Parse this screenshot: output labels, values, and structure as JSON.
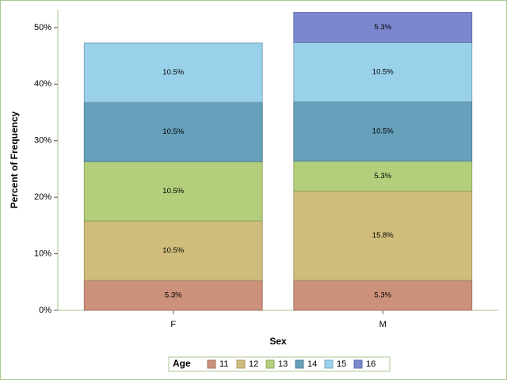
{
  "chart_data": {
    "type": "stacked_bar",
    "x_label": "Sex",
    "y_label": "Percent of Frequency",
    "legend_title": "Age",
    "categories": [
      "F",
      "M"
    ],
    "series": [
      {
        "name": "11",
        "color": "#cc917a",
        "values": [
          5.3,
          5.3
        ],
        "value_labels": [
          "5.3%",
          "5.3%"
        ]
      },
      {
        "name": "12",
        "color": "#d0bd7c",
        "values": [
          10.5,
          15.8
        ],
        "value_labels": [
          "10.5%",
          "15.8%"
        ]
      },
      {
        "name": "13",
        "color": "#b4cf7c",
        "values": [
          10.5,
          5.3
        ],
        "value_labels": [
          "10.5%",
          "5.3%"
        ]
      },
      {
        "name": "14",
        "color": "#66a0bb",
        "values": [
          10.5,
          10.5
        ],
        "value_labels": [
          "10.5%",
          "10.5%"
        ]
      },
      {
        "name": "15",
        "color": "#99d1ea",
        "values": [
          10.5,
          10.5
        ],
        "value_labels": [
          "10.5%",
          "10.5%"
        ]
      },
      {
        "name": "16",
        "color": "#7b88d0",
        "values": [
          null,
          5.3
        ],
        "value_labels": [
          null,
          "5.3%"
        ]
      }
    ],
    "ylim": [
      0,
      53.2
    ],
    "yticks": [
      {
        "value": 0,
        "label": "0%"
      },
      {
        "value": 10,
        "label": "10%"
      },
      {
        "value": 20,
        "label": "20%"
      },
      {
        "value": 30,
        "label": "30%"
      },
      {
        "value": 40,
        "label": "40%"
      },
      {
        "value": 50,
        "label": "50%"
      }
    ],
    "legend_position": "bottom"
  }
}
